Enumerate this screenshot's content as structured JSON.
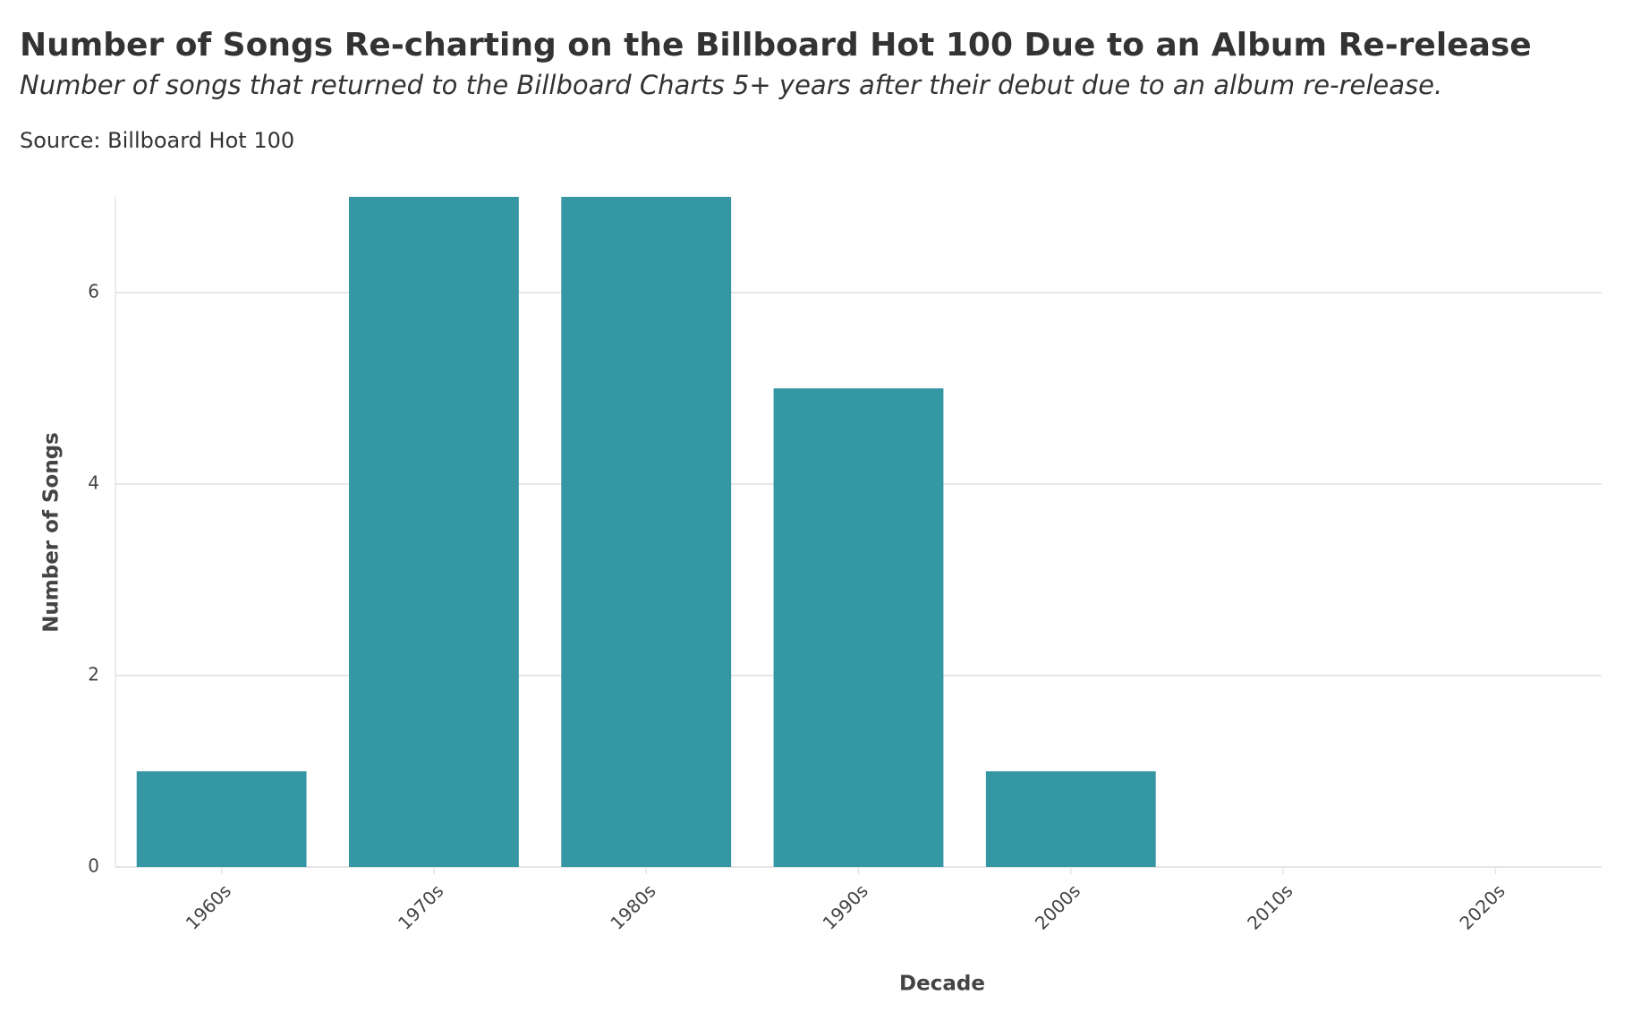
{
  "chart_data": {
    "type": "bar",
    "title": "Number of Songs Re-charting on the Billboard Hot 100 Due to an Album Re-release",
    "subtitle": "Number of songs that returned to the Billboard Charts 5+ years after their debut due to an album re-release.",
    "source": "Source: Billboard Hot 100",
    "x_label": "Decade",
    "y_label": "Number of Songs",
    "categories": [
      "1960s",
      "1970s",
      "1980s",
      "1990s",
      "2000s",
      "2010s",
      "2020s"
    ],
    "values": [
      1,
      7,
      7,
      5,
      1,
      0,
      0
    ],
    "color": "#2e94a0",
    "ylim": [
      0,
      7
    ],
    "yticks": [
      0,
      2,
      4,
      6
    ],
    "grid": true
  }
}
